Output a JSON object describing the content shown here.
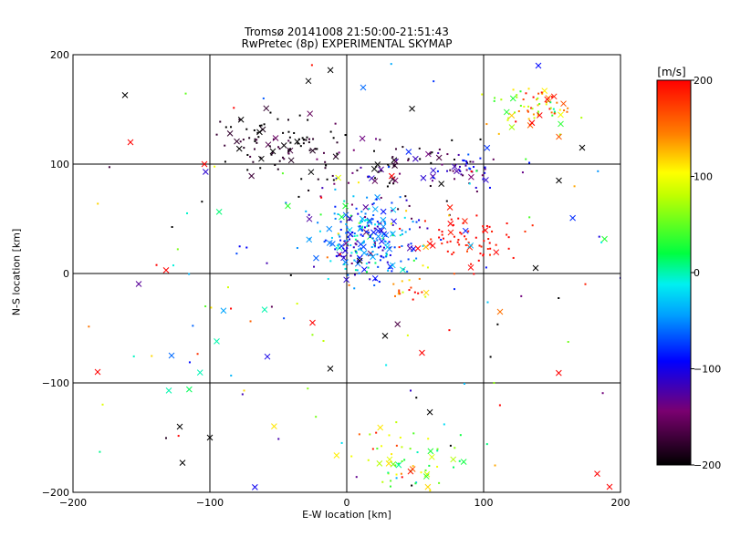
{
  "chart_data": {
    "type": "scatter",
    "title": "Tromsø 20141008 21:50:00-21:51:43",
    "subtitle": "RwPretec (8p) EXPERIMENTAL SKYMAP",
    "xlabel": "E-W location [km]",
    "ylabel": "N-S location [km]",
    "xlim": [
      -200,
      200
    ],
    "ylim": [
      -200,
      200
    ],
    "x_ticks": [
      -200,
      -100,
      0,
      100,
      200
    ],
    "y_ticks": [
      -200,
      -100,
      0,
      100,
      200
    ],
    "grid": true,
    "colorbar": {
      "label": "[m/s]",
      "range": [
        -200,
        200
      ],
      "ticks": [
        200,
        100,
        0,
        -100,
        -200
      ],
      "colormap": "black-purple-blue-cyan-green-yellow-red"
    },
    "marker_styles": [
      "dot",
      "cross"
    ],
    "clusters": [
      {
        "cx": 15,
        "cy": 30,
        "sx": 18,
        "sy": 18,
        "n": 260,
        "v": -60,
        "vs": 40
      },
      {
        "cx": -50,
        "cy": 120,
        "sx": 22,
        "sy": 12,
        "n": 90,
        "v": -190,
        "vs": 20
      },
      {
        "cx": 30,
        "cy": 95,
        "sx": 40,
        "sy": 15,
        "n": 90,
        "v": -170,
        "vs": 40
      },
      {
        "cx": 90,
        "cy": 95,
        "sx": 15,
        "sy": 8,
        "n": 45,
        "v": -120,
        "vs": 30
      },
      {
        "cx": 140,
        "cy": 150,
        "sx": 15,
        "sy": 12,
        "n": 70,
        "v": 120,
        "vs": 60
      },
      {
        "cx": 90,
        "cy": 30,
        "sx": 20,
        "sy": 12,
        "n": 70,
        "v": 195,
        "vs": 10
      },
      {
        "cx": 45,
        "cy": -175,
        "sx": 22,
        "sy": 18,
        "n": 70,
        "v": 90,
        "vs": 60
      },
      {
        "cx": 45,
        "cy": -15,
        "sx": 8,
        "sy": 5,
        "n": 18,
        "v": 150,
        "vs": 40
      },
      {
        "cx": 0,
        "cy": 0,
        "sx": 150,
        "sy": 110,
        "n": 170,
        "v": 0,
        "vs": 170
      }
    ],
    "highlighted_crosses": [
      {
        "x": -162,
        "y": 163,
        "v": -200
      },
      {
        "x": -28,
        "y": 176,
        "v": -200
      },
      {
        "x": -158,
        "y": 120,
        "v": 200
      },
      {
        "x": -104,
        "y": 100,
        "v": 200
      },
      {
        "x": 12,
        "y": 170,
        "v": -60
      },
      {
        "x": 140,
        "y": 190,
        "v": -90
      },
      {
        "x": 155,
        "y": 125,
        "v": 160
      },
      {
        "x": 172,
        "y": 115,
        "v": -200
      },
      {
        "x": 155,
        "y": 85,
        "v": -200
      },
      {
        "x": -132,
        "y": 3,
        "v": 200
      },
      {
        "x": -60,
        "y": -33,
        "v": 0
      },
      {
        "x": -25,
        "y": -45,
        "v": 200
      },
      {
        "x": -130,
        "y": -107,
        "v": 0
      },
      {
        "x": -122,
        "y": -140,
        "v": -200
      },
      {
        "x": -120,
        "y": -173,
        "v": -200
      },
      {
        "x": 183,
        "y": -183,
        "v": 200
      },
      {
        "x": 192,
        "y": -195,
        "v": 200
      },
      {
        "x": 138,
        "y": 5,
        "v": -200
      },
      {
        "x": 112,
        "y": -35,
        "v": 150
      },
      {
        "x": -12,
        "y": -87,
        "v": -200
      },
      {
        "x": 28,
        "y": -57,
        "v": -200
      },
      {
        "x": -95,
        "y": -62,
        "v": 0
      },
      {
        "x": -58,
        "y": -76,
        "v": -100
      },
      {
        "x": -182,
        "y": -90,
        "v": 200
      },
      {
        "x": -100,
        "y": -150,
        "v": -200
      },
      {
        "x": -128,
        "y": -75,
        "v": -60
      }
    ]
  }
}
